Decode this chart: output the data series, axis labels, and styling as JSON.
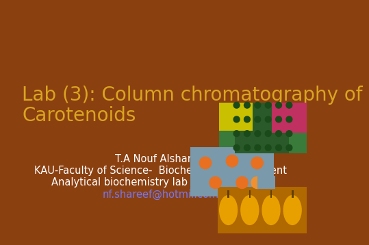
{
  "background_color": "#8B4010",
  "title_line1": "Lab (3): Column chromatography of",
  "title_line2": "Carotenoids",
  "title_color": "#DAA520",
  "title_fontsize": 20,
  "body_lines": [
    "T.A Nouf Alshareef",
    "KAU-Faculty of Science-  Biochemistry department",
    "Analytical biochemistry lab (Bioc 343) 2012"
  ],
  "email": "nf.shareef@hotmil.com",
  "body_color": "#FFFFFF",
  "email_color": "#7777EE",
  "body_fontsize": 10.5
}
